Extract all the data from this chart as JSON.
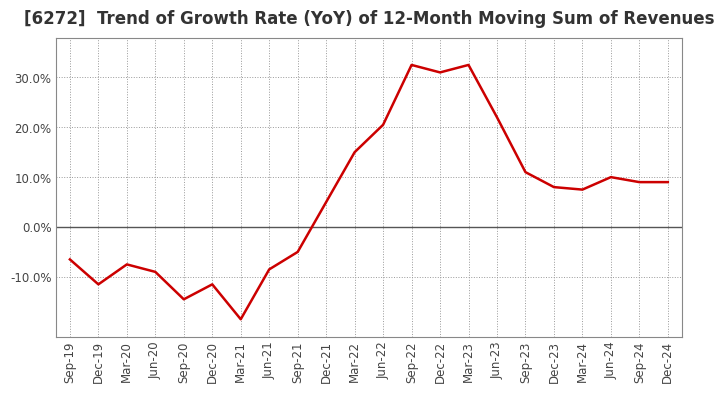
{
  "title": "[6272]  Trend of Growth Rate (YoY) of 12-Month Moving Sum of Revenues",
  "x_labels": [
    "Sep-19",
    "Dec-19",
    "Mar-20",
    "Jun-20",
    "Sep-20",
    "Dec-20",
    "Mar-21",
    "Jun-21",
    "Sep-21",
    "Dec-21",
    "Mar-22",
    "Jun-22",
    "Sep-22",
    "Dec-22",
    "Mar-23",
    "Jun-23",
    "Sep-23",
    "Dec-23",
    "Mar-24",
    "Jun-24",
    "Sep-24",
    "Dec-24"
  ],
  "y_values": [
    -6.5,
    -11.5,
    -7.5,
    -9.0,
    -14.5,
    -11.5,
    -18.5,
    -8.5,
    -5.0,
    5.0,
    15.0,
    20.5,
    32.5,
    31.0,
    32.5,
    22.0,
    11.0,
    8.0,
    7.5,
    10.0,
    9.0,
    9.0
  ],
  "line_color": "#cc0000",
  "line_width": 1.8,
  "background_color": "#ffffff",
  "plot_bg_color": "#ffffff",
  "grid_color": "#999999",
  "ylim": [
    -22,
    38
  ],
  "yticks": [
    -10.0,
    0.0,
    10.0,
    20.0,
    30.0
  ],
  "ytick_labels": [
    "-10.0%",
    "0.0%",
    "10.0%",
    "20.0%",
    "30.0%"
  ],
  "zero_line_color": "#555555",
  "title_fontsize": 12,
  "tick_fontsize": 8.5,
  "title_color": "#333333",
  "tick_color": "#444444"
}
